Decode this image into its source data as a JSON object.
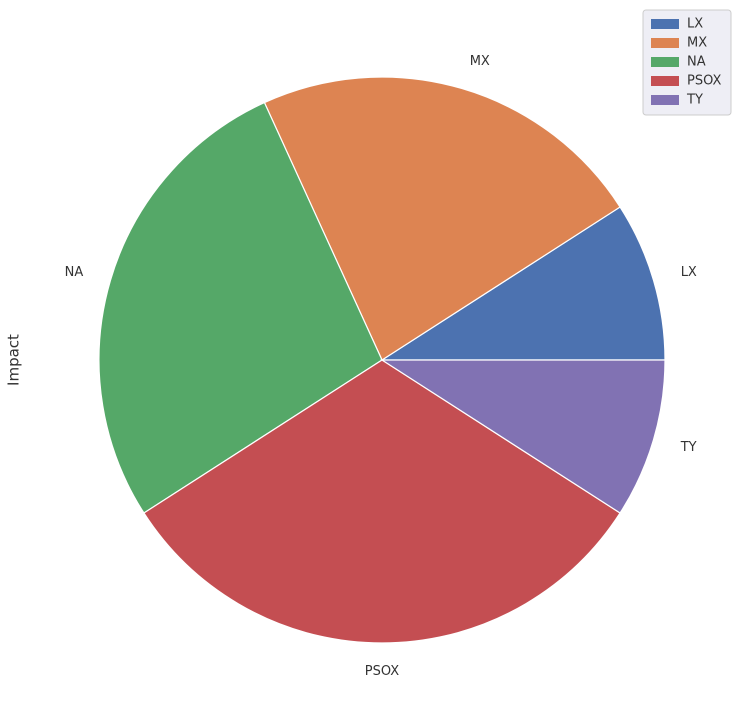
{
  "chart_data": {
    "type": "pie",
    "ylabel": "Impact",
    "categories": [
      "LX",
      "MX",
      "NA",
      "PSOX",
      "TY"
    ],
    "values": [
      2,
      5,
      6,
      7,
      2
    ],
    "colors": [
      "#4c72b0",
      "#dd8452",
      "#55a868",
      "#c44e52",
      "#8172b3"
    ],
    "legend": "upper right"
  }
}
